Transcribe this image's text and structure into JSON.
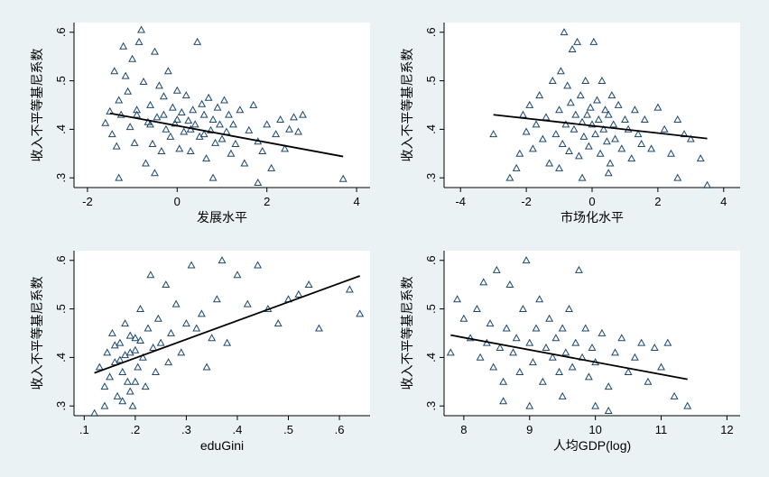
{
  "colors": {
    "background": "#eaf2f3",
    "plot_area": "#ffffff",
    "marker": "#1a476f",
    "fit_line": "#000000"
  },
  "chart_data": [
    {
      "type": "scatter",
      "id": "development",
      "xlabel": "发展水平",
      "ylabel": "收入不平等基尼系数",
      "xlim": [
        -2.3,
        4.3
      ],
      "ylim": [
        0.28,
        0.62
      ],
      "xticks": [
        -2,
        0,
        2,
        4
      ],
      "xtick_labels": [
        "-2",
        "0",
        "2",
        "4"
      ],
      "yticks": [
        0.3,
        0.4,
        0.5,
        0.6
      ],
      "ytick_labels": [
        ".3",
        ".4",
        ".5",
        ".6"
      ],
      "fit_line": [
        [
          -1.5,
          0.433
        ],
        [
          3.7,
          0.344
        ]
      ],
      "points": [
        [
          -1.6,
          0.413
        ],
        [
          -1.5,
          0.437
        ],
        [
          -1.45,
          0.39
        ],
        [
          -1.4,
          0.52
        ],
        [
          -1.35,
          0.365
        ],
        [
          -1.3,
          0.46
        ],
        [
          -1.25,
          0.43
        ],
        [
          -1.2,
          0.571
        ],
        [
          -1.15,
          0.51
        ],
        [
          -1.1,
          0.478
        ],
        [
          -1.05,
          0.405
        ],
        [
          -1.0,
          0.545
        ],
        [
          -0.95,
          0.372
        ],
        [
          -0.9,
          0.44
        ],
        [
          -0.85,
          0.58
        ],
        [
          -0.8,
          0.605
        ],
        [
          -0.75,
          0.498
        ],
        [
          -0.7,
          0.33
        ],
        [
          -0.65,
          0.415
        ],
        [
          -0.6,
          0.45
        ],
        [
          -0.55,
          0.37
        ],
        [
          -0.5,
          0.56
        ],
        [
          -0.45,
          0.425
        ],
        [
          -0.4,
          0.49
        ],
        [
          -0.35,
          0.355
        ],
        [
          -0.3,
          0.468
        ],
        [
          -0.25,
          0.4
        ],
        [
          -0.2,
          0.52
        ],
        [
          -0.15,
          0.385
        ],
        [
          -0.1,
          0.445
        ],
        [
          -0.05,
          0.412
        ],
        [
          0.0,
          0.48
        ],
        [
          0.05,
          0.36
        ],
        [
          0.1,
          0.435
        ],
        [
          0.15,
          0.395
        ],
        [
          0.2,
          0.47
        ],
        [
          0.25,
          0.418
        ],
        [
          0.3,
          0.355
        ],
        [
          0.35,
          0.44
        ],
        [
          0.4,
          0.41
        ],
        [
          0.45,
          0.58
        ],
        [
          0.5,
          0.385
        ],
        [
          0.55,
          0.452
        ],
        [
          0.6,
          0.43
        ],
        [
          0.65,
          0.34
        ],
        [
          0.7,
          0.465
        ],
        [
          0.75,
          0.398
        ],
        [
          0.8,
          0.42
        ],
        [
          0.85,
          0.372
        ],
        [
          0.9,
          0.445
        ],
        [
          0.95,
          0.41
        ],
        [
          1.0,
          0.38
        ],
        [
          1.05,
          0.46
        ],
        [
          1.1,
          0.395
        ],
        [
          1.15,
          0.43
        ],
        [
          1.2,
          0.35
        ],
        [
          1.25,
          0.41
        ],
        [
          1.3,
          0.37
        ],
        [
          1.4,
          0.44
        ],
        [
          1.5,
          0.33
        ],
        [
          1.6,
          0.398
        ],
        [
          1.7,
          0.45
        ],
        [
          1.8,
          0.375
        ],
        [
          1.9,
          0.355
        ],
        [
          2.0,
          0.41
        ],
        [
          2.1,
          0.32
        ],
        [
          2.2,
          0.39
        ],
        [
          2.3,
          0.42
        ],
        [
          2.4,
          0.36
        ],
        [
          2.5,
          0.4
        ],
        [
          2.6,
          0.425
        ],
        [
          2.7,
          0.395
        ],
        [
          2.8,
          0.43
        ],
        [
          3.7,
          0.298
        ],
        [
          -0.9,
          0.43
        ],
        [
          -0.6,
          0.41
        ],
        [
          -0.3,
          0.43
        ],
        [
          0.0,
          0.42
        ],
        [
          0.3,
          0.4
        ],
        [
          0.6,
          0.39
        ],
        [
          -1.3,
          0.3
        ],
        [
          -0.5,
          0.31
        ],
        [
          0.8,
          0.3
        ],
        [
          1.8,
          0.29
        ]
      ]
    },
    {
      "type": "scatter",
      "id": "marketization",
      "xlabel": "市场化水平",
      "ylabel": "收入不平等基尼系数",
      "xlim": [
        -4.5,
        4.5
      ],
      "ylim": [
        0.28,
        0.62
      ],
      "xticks": [
        -4,
        -2,
        0,
        2,
        4
      ],
      "xtick_labels": [
        "-4",
        "-2",
        "0",
        "2",
        "4"
      ],
      "yticks": [
        0.3,
        0.4,
        0.5,
        0.6
      ],
      "ytick_labels": [
        ".3",
        ".4",
        ".5",
        ".6"
      ],
      "fit_line": [
        [
          -3.0,
          0.43
        ],
        [
          3.5,
          0.381
        ]
      ],
      "points": [
        [
          -3.0,
          0.39
        ],
        [
          -2.5,
          0.3
        ],
        [
          -2.3,
          0.32
        ],
        [
          -2.2,
          0.35
        ],
        [
          -2.1,
          0.43
        ],
        [
          -2.0,
          0.395
        ],
        [
          -1.9,
          0.45
        ],
        [
          -1.8,
          0.36
        ],
        [
          -1.7,
          0.41
        ],
        [
          -1.6,
          0.47
        ],
        [
          -1.5,
          0.38
        ],
        [
          -1.4,
          0.425
        ],
        [
          -1.3,
          0.33
        ],
        [
          -1.2,
          0.5
        ],
        [
          -1.1,
          0.39
        ],
        [
          -1.0,
          0.44
        ],
        [
          -0.95,
          0.52
        ],
        [
          -0.9,
          0.37
        ],
        [
          -0.85,
          0.6
        ],
        [
          -0.8,
          0.41
        ],
        [
          -0.75,
          0.49
        ],
        [
          -0.7,
          0.355
        ],
        [
          -0.65,
          0.455
        ],
        [
          -0.6,
          0.565
        ],
        [
          -0.55,
          0.4
        ],
        [
          -0.5,
          0.43
        ],
        [
          -0.45,
          0.58
        ],
        [
          -0.4,
          0.345
        ],
        [
          -0.35,
          0.47
        ],
        [
          -0.3,
          0.415
        ],
        [
          -0.25,
          0.385
        ],
        [
          -0.2,
          0.5
        ],
        [
          -0.15,
          0.43
        ],
        [
          -0.1,
          0.365
        ],
        [
          -0.05,
          0.445
        ],
        [
          0.0,
          0.41
        ],
        [
          0.05,
          0.58
        ],
        [
          0.1,
          0.39
        ],
        [
          0.15,
          0.46
        ],
        [
          0.2,
          0.42
        ],
        [
          0.25,
          0.35
        ],
        [
          0.3,
          0.5
        ],
        [
          0.35,
          0.4
        ],
        [
          0.4,
          0.44
        ],
        [
          0.45,
          0.375
        ],
        [
          0.5,
          0.43
        ],
        [
          0.55,
          0.33
        ],
        [
          0.6,
          0.47
        ],
        [
          0.65,
          0.41
        ],
        [
          0.7,
          0.38
        ],
        [
          0.8,
          0.45
        ],
        [
          0.9,
          0.36
        ],
        [
          1.0,
          0.42
        ],
        [
          1.1,
          0.4
        ],
        [
          1.2,
          0.34
        ],
        [
          1.3,
          0.44
        ],
        [
          1.4,
          0.39
        ],
        [
          1.5,
          0.37
        ],
        [
          1.6,
          0.42
        ],
        [
          1.8,
          0.36
        ],
        [
          2.0,
          0.445
        ],
        [
          2.2,
          0.4
        ],
        [
          2.4,
          0.35
        ],
        [
          2.6,
          0.42
        ],
        [
          2.8,
          0.39
        ],
        [
          3.0,
          0.38
        ],
        [
          3.3,
          0.34
        ],
        [
          3.5,
          0.285
        ],
        [
          -1.0,
          0.32
        ],
        [
          -0.3,
          0.3
        ],
        [
          0.5,
          0.31
        ],
        [
          2.6,
          0.3
        ]
      ]
    },
    {
      "type": "scatter",
      "id": "edugini",
      "xlabel": "eduGini",
      "ylabel": "收入不平等基尼系数",
      "xlim": [
        0.08,
        0.66
      ],
      "ylim": [
        0.28,
        0.62
      ],
      "xticks": [
        0.1,
        0.2,
        0.3,
        0.4,
        0.5,
        0.6
      ],
      "xtick_labels": [
        ".1",
        ".2",
        ".3",
        ".4",
        ".5",
        ".6"
      ],
      "yticks": [
        0.3,
        0.4,
        0.5,
        0.6
      ],
      "ytick_labels": [
        ".3",
        ".4",
        ".5",
        ".6"
      ],
      "fit_line": [
        [
          0.12,
          0.368
        ],
        [
          0.64,
          0.568
        ]
      ],
      "points": [
        [
          0.12,
          0.285
        ],
        [
          0.13,
          0.38
        ],
        [
          0.14,
          0.34
        ],
        [
          0.145,
          0.41
        ],
        [
          0.15,
          0.36
        ],
        [
          0.155,
          0.45
        ],
        [
          0.16,
          0.39
        ],
        [
          0.165,
          0.32
        ],
        [
          0.17,
          0.43
        ],
        [
          0.175,
          0.37
        ],
        [
          0.18,
          0.47
        ],
        [
          0.185,
          0.35
        ],
        [
          0.19,
          0.41
        ],
        [
          0.195,
          0.3
        ],
        [
          0.2,
          0.44
        ],
        [
          0.205,
          0.38
        ],
        [
          0.21,
          0.5
        ],
        [
          0.215,
          0.4
        ],
        [
          0.22,
          0.34
        ],
        [
          0.225,
          0.46
        ],
        [
          0.23,
          0.57
        ],
        [
          0.235,
          0.42
        ],
        [
          0.24,
          0.37
        ],
        [
          0.245,
          0.48
        ],
        [
          0.25,
          0.43
        ],
        [
          0.26,
          0.55
        ],
        [
          0.265,
          0.39
        ],
        [
          0.27,
          0.45
        ],
        [
          0.28,
          0.51
        ],
        [
          0.29,
          0.41
        ],
        [
          0.3,
          0.47
        ],
        [
          0.31,
          0.59
        ],
        [
          0.32,
          0.46
        ],
        [
          0.33,
          0.49
        ],
        [
          0.34,
          0.38
        ],
        [
          0.35,
          0.44
        ],
        [
          0.36,
          0.52
        ],
        [
          0.37,
          0.6
        ],
        [
          0.38,
          0.43
        ],
        [
          0.4,
          0.57
        ],
        [
          0.42,
          0.51
        ],
        [
          0.44,
          0.59
        ],
        [
          0.46,
          0.5
        ],
        [
          0.48,
          0.47
        ],
        [
          0.5,
          0.52
        ],
        [
          0.52,
          0.53
        ],
        [
          0.54,
          0.55
        ],
        [
          0.56,
          0.46
        ],
        [
          0.62,
          0.54
        ],
        [
          0.64,
          0.49
        ],
        [
          0.16,
          0.425
        ],
        [
          0.17,
          0.395
        ],
        [
          0.18,
          0.405
        ],
        [
          0.19,
          0.445
        ],
        [
          0.2,
          0.415
        ],
        [
          0.21,
          0.435
        ],
        [
          0.175,
          0.31
        ],
        [
          0.19,
          0.33
        ],
        [
          0.2,
          0.35
        ],
        [
          0.14,
          0.3
        ]
      ]
    },
    {
      "type": "scatter",
      "id": "gdp",
      "xlabel": "人均GDP(log)",
      "ylabel": "收入不平等基尼系数",
      "xlim": [
        7.7,
        12.2
      ],
      "ylim": [
        0.28,
        0.62
      ],
      "xticks": [
        8,
        9,
        10,
        11,
        12
      ],
      "xtick_labels": [
        "8",
        "9",
        "10",
        "11",
        "12"
      ],
      "yticks": [
        0.3,
        0.4,
        0.5,
        0.6
      ],
      "ytick_labels": [
        ".3",
        ".4",
        ".5",
        ".6"
      ],
      "fit_line": [
        [
          7.8,
          0.446
        ],
        [
          11.4,
          0.355
        ]
      ],
      "points": [
        [
          7.8,
          0.41
        ],
        [
          7.9,
          0.52
        ],
        [
          8.0,
          0.48
        ],
        [
          8.1,
          0.44
        ],
        [
          8.2,
          0.5
        ],
        [
          8.25,
          0.4
        ],
        [
          8.3,
          0.555
        ],
        [
          8.35,
          0.43
        ],
        [
          8.4,
          0.47
        ],
        [
          8.45,
          0.38
        ],
        [
          8.5,
          0.58
        ],
        [
          8.55,
          0.42
        ],
        [
          8.6,
          0.35
        ],
        [
          8.65,
          0.46
        ],
        [
          8.7,
          0.55
        ],
        [
          8.75,
          0.41
        ],
        [
          8.8,
          0.44
        ],
        [
          8.85,
          0.37
        ],
        [
          8.9,
          0.5
        ],
        [
          8.95,
          0.6
        ],
        [
          9.0,
          0.43
        ],
        [
          9.05,
          0.39
        ],
        [
          9.1,
          0.46
        ],
        [
          9.15,
          0.52
        ],
        [
          9.2,
          0.35
        ],
        [
          9.25,
          0.42
        ],
        [
          9.3,
          0.48
        ],
        [
          9.35,
          0.4
        ],
        [
          9.4,
          0.44
        ],
        [
          9.45,
          0.37
        ],
        [
          9.5,
          0.46
        ],
        [
          9.55,
          0.41
        ],
        [
          9.6,
          0.5
        ],
        [
          9.65,
          0.38
        ],
        [
          9.7,
          0.43
        ],
        [
          9.75,
          0.58
        ],
        [
          9.8,
          0.4
        ],
        [
          9.85,
          0.46
        ],
        [
          9.9,
          0.36
        ],
        [
          9.95,
          0.42
        ],
        [
          10.0,
          0.39
        ],
        [
          10.1,
          0.45
        ],
        [
          10.2,
          0.34
        ],
        [
          10.3,
          0.41
        ],
        [
          10.4,
          0.44
        ],
        [
          10.5,
          0.37
        ],
        [
          10.6,
          0.4
        ],
        [
          10.7,
          0.43
        ],
        [
          10.8,
          0.35
        ],
        [
          10.9,
          0.42
        ],
        [
          11.0,
          0.38
        ],
        [
          11.1,
          0.43
        ],
        [
          11.2,
          0.32
        ],
        [
          11.4,
          0.3
        ],
        [
          8.6,
          0.31
        ],
        [
          9.0,
          0.3
        ],
        [
          9.5,
          0.32
        ],
        [
          10.0,
          0.3
        ],
        [
          10.2,
          0.29
        ]
      ]
    }
  ]
}
